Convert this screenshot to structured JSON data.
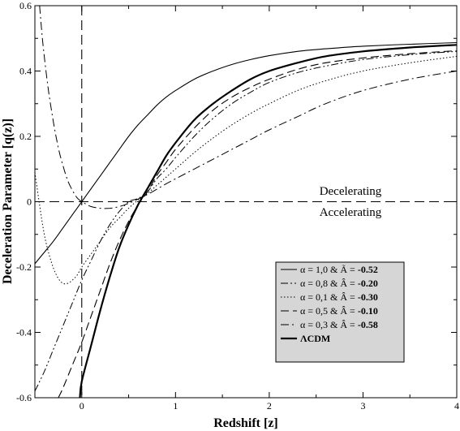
{
  "chart_data": {
    "type": "line",
    "xlabel": "Redshift [z]",
    "ylabel": "Deceleration Parameter  [q(z)]",
    "xlim": [
      -0.5,
      4
    ],
    "ylim": [
      -0.6,
      0.6
    ],
    "x_ticks": [
      {
        "value": 0,
        "label": "0"
      },
      {
        "value": 1,
        "label": "1"
      },
      {
        "value": 2,
        "label": "2"
      },
      {
        "value": 3,
        "label": "3"
      },
      {
        "value": 4,
        "label": "4"
      }
    ],
    "y_ticks": [
      {
        "value": -0.6,
        "label": "-0.6"
      },
      {
        "value": -0.4,
        "label": "-0.4"
      },
      {
        "value": -0.2,
        "label": "-0.2"
      },
      {
        "value": 0,
        "label": "0"
      },
      {
        "value": 0.2,
        "label": "0.2"
      },
      {
        "value": 0.4,
        "label": "0.4"
      },
      {
        "value": 0.6,
        "label": "0.6"
      }
    ],
    "grid": false,
    "legend_position": "lower-right",
    "annotations": {
      "upper": "Decelerating",
      "lower": "Accelerating"
    },
    "reference_lines": [
      {
        "orientation": "horizontal",
        "value": 0,
        "style": "dashed"
      },
      {
        "orientation": "vertical",
        "value": 0,
        "style": "dashed"
      }
    ],
    "series": [
      {
        "name": "α = 1,0 & Ã = -0.52",
        "legend_prefix": "α = 1,0 & Ã = ",
        "legend_value": "-0.52",
        "style": "solid",
        "width": 1.1,
        "x": [
          -0.5,
          -0.4,
          -0.3,
          -0.2,
          -0.1,
          0,
          0.1,
          0.2,
          0.3,
          0.4,
          0.5,
          0.6,
          0.7,
          0.8,
          0.9,
          1.0,
          1.2,
          1.4,
          1.6,
          1.8,
          2.0,
          2.3,
          2.6,
          3.0,
          3.5,
          4.0
        ],
        "y": [
          -0.19,
          -0.155,
          -0.12,
          -0.08,
          -0.04,
          0.0,
          0.04,
          0.08,
          0.12,
          0.16,
          0.2,
          0.235,
          0.265,
          0.295,
          0.32,
          0.34,
          0.375,
          0.4,
          0.42,
          0.435,
          0.447,
          0.46,
          0.468,
          0.476,
          0.482,
          0.487
        ]
      },
      {
        "name": "α = 0,8 & Â = -0.20",
        "legend_prefix": "α = 0,8 & Â = ",
        "legend_value": "-0.20",
        "style": "dash-dot-dot",
        "width": 1.0,
        "x": [
          -0.5,
          -0.4,
          -0.3,
          -0.2,
          -0.1,
          0,
          0.1,
          0.2,
          0.3,
          0.4,
          0.5,
          0.6,
          0.7,
          0.8,
          0.9,
          1.0,
          1.2,
          1.4,
          1.6,
          1.8,
          2.0,
          2.3,
          2.6,
          3.0,
          3.5,
          4.0
        ],
        "y": [
          -0.58,
          -0.52,
          -0.45,
          -0.38,
          -0.31,
          -0.24,
          -0.18,
          -0.12,
          -0.07,
          -0.03,
          0.0,
          0.01,
          0.03,
          0.07,
          0.1,
          0.135,
          0.2,
          0.255,
          0.3,
          0.335,
          0.365,
          0.395,
          0.415,
          0.435,
          0.45,
          0.46
        ]
      },
      {
        "name": "α = 0,1 & Â = -0.30",
        "legend_prefix": "α = 0,1 & Â = ",
        "legend_value": "-0.30",
        "style": "dotted",
        "width": 1.0,
        "x": [
          -0.5,
          -0.45,
          -0.4,
          -0.35,
          -0.3,
          -0.25,
          -0.2,
          -0.15,
          -0.1,
          -0.05,
          0,
          0.1,
          0.2,
          0.3,
          0.4,
          0.5,
          0.6,
          0.7,
          0.8,
          0.9,
          1.0,
          1.2,
          1.4,
          1.6,
          1.8,
          2.0,
          2.3,
          2.6,
          3.0,
          3.5,
          4.0
        ],
        "y": [
          0.09,
          -0.01,
          -0.1,
          -0.16,
          -0.205,
          -0.235,
          -0.25,
          -0.25,
          -0.24,
          -0.225,
          -0.2,
          -0.16,
          -0.12,
          -0.08,
          -0.05,
          -0.02,
          0.005,
          0.025,
          0.05,
          0.075,
          0.1,
          0.15,
          0.195,
          0.235,
          0.27,
          0.3,
          0.34,
          0.37,
          0.4,
          0.425,
          0.445
        ]
      },
      {
        "name": "α = 0,5 & Â = -0.10",
        "legend_prefix": "α = 0,5 & Â = ",
        "legend_value": "-0.10",
        "style": "dashed",
        "width": 1.1,
        "x": [
          -0.25,
          -0.2,
          -0.1,
          0,
          0.1,
          0.2,
          0.3,
          0.4,
          0.5,
          0.6,
          0.7,
          0.8,
          0.9,
          1.0,
          1.2,
          1.4,
          1.6,
          1.8,
          2.0,
          2.3,
          2.6,
          3.0,
          3.5,
          4.0
        ],
        "y": [
          -0.6,
          -0.57,
          -0.5,
          -0.43,
          -0.35,
          -0.27,
          -0.19,
          -0.12,
          -0.06,
          -0.01,
          0.03,
          0.08,
          0.12,
          0.16,
          0.225,
          0.28,
          0.32,
          0.35,
          0.375,
          0.405,
          0.425,
          0.44,
          0.453,
          0.462
        ]
      },
      {
        "name": "α = 0,3 & Â = -0.58",
        "legend_prefix": "α = 0,3 & Â = ",
        "legend_value": "-0.58",
        "style": "dash-dot",
        "width": 1.0,
        "x": [
          -0.45,
          -0.42,
          -0.39,
          -0.35,
          -0.3,
          -0.25,
          -0.2,
          -0.15,
          -0.1,
          -0.05,
          0,
          0.05,
          0.1,
          0.2,
          0.3,
          0.4,
          0.5,
          0.6,
          0.7,
          0.8,
          0.9,
          1.0,
          1.2,
          1.4,
          1.6,
          1.8,
          2.0,
          2.3,
          2.6,
          3.0,
          3.5,
          4.0
        ],
        "y": [
          0.6,
          0.5,
          0.42,
          0.33,
          0.24,
          0.165,
          0.11,
          0.065,
          0.035,
          0.012,
          0.0,
          -0.008,
          -0.015,
          -0.02,
          -0.02,
          -0.015,
          -0.005,
          0.008,
          0.022,
          0.038,
          0.055,
          0.07,
          0.1,
          0.13,
          0.16,
          0.19,
          0.22,
          0.26,
          0.3,
          0.34,
          0.375,
          0.4
        ]
      },
      {
        "name": "ΛCDM",
        "legend_prefix": "ΛCDM",
        "legend_value": "",
        "style": "solid",
        "width": 2.2,
        "x": [
          -0.02,
          0,
          0.1,
          0.2,
          0.3,
          0.4,
          0.5,
          0.6,
          0.7,
          0.8,
          0.9,
          1.0,
          1.2,
          1.4,
          1.6,
          1.8,
          2.0,
          2.3,
          2.6,
          3.0,
          3.5,
          4.0
        ],
        "y": [
          -0.6,
          -0.55,
          -0.44,
          -0.33,
          -0.23,
          -0.14,
          -0.07,
          -0.01,
          0.04,
          0.09,
          0.14,
          0.18,
          0.25,
          0.3,
          0.34,
          0.375,
          0.4,
          0.425,
          0.445,
          0.46,
          0.472,
          0.48
        ]
      }
    ]
  }
}
